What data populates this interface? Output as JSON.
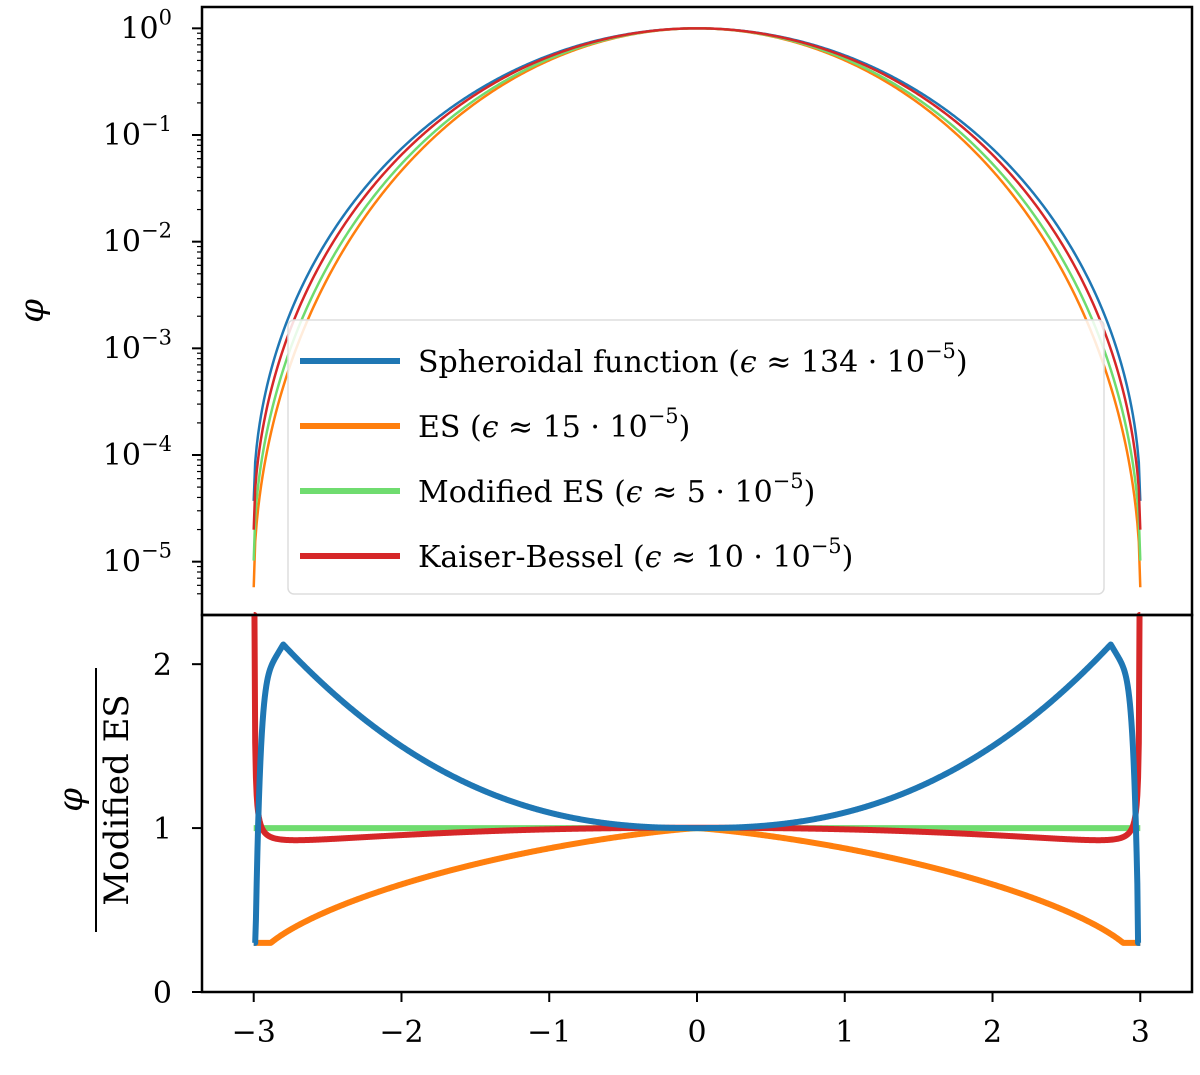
{
  "chart_data": [
    {
      "panel": "top",
      "type": "line",
      "yscale": "log",
      "ylabel": "φ",
      "xlim": [
        -3.35,
        3.35
      ],
      "ylim_exp": [
        -5.5,
        0.2
      ],
      "ytick_base": "10",
      "ytick_exponents": [
        "0",
        "−1",
        "−2",
        "−3",
        "−4",
        "−5"
      ],
      "legend_location": "lower-center",
      "series": [
        {
          "name": "Spheroidal function",
          "label_prefix": "Spheroidal function (",
          "label_mid": "ϵ ≈ 134 · 10",
          "label_exp": "−5",
          "label_suffix": ")",
          "color": "#1f77b4"
        },
        {
          "name": "ES",
          "label_prefix": "ES (",
          "label_mid": "ϵ ≈ 15 · 10",
          "label_exp": "−5",
          "label_suffix": ")",
          "color": "#ff7f0e"
        },
        {
          "name": "Modified ES",
          "label_prefix": "Modified ES (",
          "label_mid": "ϵ ≈ 5 · 10",
          "label_exp": "−5",
          "label_suffix": ")",
          "color": "#6fdc6f"
        },
        {
          "name": "Kaiser-Bessel",
          "label_prefix": "Kaiser-Bessel (",
          "label_mid": "ϵ ≈ 10 · 10",
          "label_exp": "−5",
          "label_suffix": ")",
          "color": "#d62728"
        }
      ]
    },
    {
      "panel": "bottom",
      "type": "line",
      "ylabel_numerator": "φ",
      "ylabel_denominator": "Modified ES",
      "xlim": [
        -3.35,
        3.35
      ],
      "ylim": [
        0,
        2.3
      ],
      "yticks": [
        "0",
        "1",
        "2"
      ],
      "xticks": [
        "−3",
        "−2",
        "−1",
        "0",
        "1",
        "2",
        "3"
      ],
      "series": [
        {
          "name": "Spheroidal function",
          "color": "#1f77b4",
          "ratio_edge": 0.3,
          "ratio_peak": 2.12,
          "peak_x": 2.8,
          "ratio_center": 1.0
        },
        {
          "name": "ES",
          "color": "#ff7f0e",
          "ratio_edge": 0.3,
          "ratio_center": 1.0
        },
        {
          "name": "Modified ES",
          "color": "#6fdc6f",
          "ratio": 1.0
        },
        {
          "name": "Kaiser-Bessel",
          "color": "#d62728",
          "ratio_edge": 2.3,
          "ratio_min": 0.88,
          "min_x": 2.8,
          "ratio_center": 1.0
        }
      ]
    }
  ]
}
